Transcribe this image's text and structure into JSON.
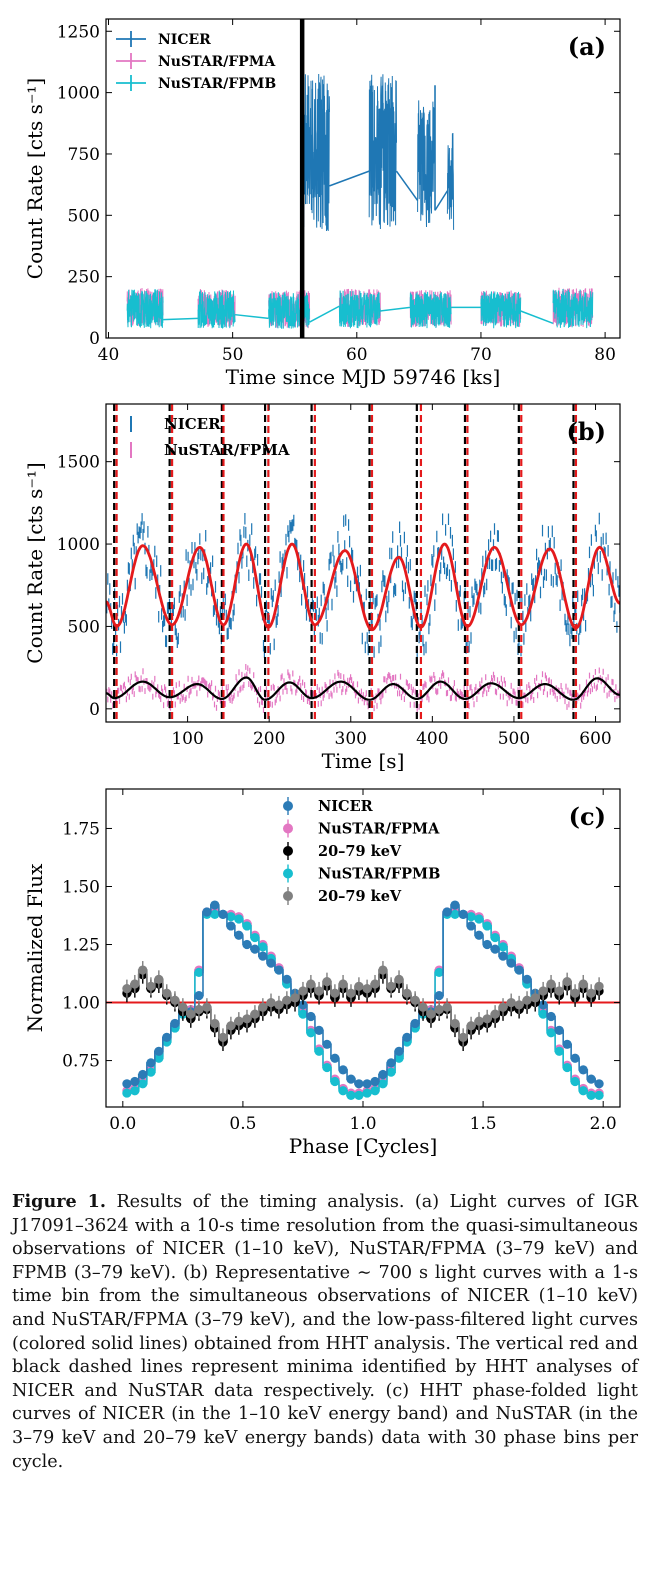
{
  "figure": {
    "caption_label": "Figure 1.",
    "caption_text": "Results of the timing analysis. (a) Light curves of IGR J17091–3624 with a 10-s time resolution from the quasi-simultaneous observations of NICER (1–10 keV), NuSTAR/FPMA (3–79 keV) and FPMB (3–79 keV). (b) Representative ∼ 700 s light curves with a 1-s time bin from the simultaneous observations of NICER (1–10 keV) and NuSTAR/FPMA (3–79 keV), and the low-pass-filtered light curves (colored solid lines) obtained from HHT analysis. The vertical red and black dashed lines represent minima identified by HHT analyses of NICER and NuSTAR data respectively. (c) HHT phase-folded light curves of NICER (in the 1–10 keV energy band) and NuSTAR (in the 3–79 keV and 20–79 keV energy bands) data with 30 phase bins per cycle."
  },
  "chart_data": [
    {
      "panel": "(a)",
      "type": "line",
      "xlabel": "Time since MJD 59746 [ks]",
      "ylabel": "Count Rate [cts s⁻¹]",
      "xlim": [
        39.8,
        81.2
      ],
      "ylim": [
        0,
        1300
      ],
      "xticks": [
        40,
        50,
        60,
        70,
        80
      ],
      "yticks": [
        0,
        250,
        500,
        750,
        1000,
        1250
      ],
      "legend_position": "top-left",
      "vline_x": 55.6,
      "series": [
        {
          "name": "NICER",
          "color": "#1f77b4",
          "segments": [
            {
              "x": [
                55.5,
                57.8
              ],
              "low": 430,
              "high": 1080
            },
            {
              "x": [
                61.0,
                63.2
              ],
              "low": 440,
              "high": 1080
            },
            {
              "x": [
                64.9,
                66.3
              ],
              "low": 450,
              "high": 970
            },
            {
              "x": [
                67.3,
                67.8
              ],
              "low": 440,
              "high": 850
            }
          ],
          "connectors": [
            [
              57.8,
              620,
              61.0,
              680
            ],
            [
              63.2,
              680,
              64.9,
              560
            ],
            [
              66.3,
              520,
              67.3,
              600
            ]
          ],
          "spike": [
            66.3,
            520,
            66.3,
            1030
          ]
        },
        {
          "name": "NuSTAR/FPMA",
          "color": "#e377c2",
          "segments": [
            {
              "x": [
                41.5,
                44.4
              ],
              "low": 45,
              "high": 205
            },
            {
              "x": [
                47.2,
                50.2
              ],
              "low": 45,
              "high": 200
            },
            {
              "x": [
                52.9,
                56.2
              ],
              "low": 40,
              "high": 195
            },
            {
              "x": [
                58.6,
                61.9
              ],
              "low": 45,
              "high": 200
            },
            {
              "x": [
                64.3,
                67.6
              ],
              "low": 45,
              "high": 195
            },
            {
              "x": [
                70.0,
                73.2
              ],
              "low": 45,
              "high": 195
            },
            {
              "x": [
                75.8,
                79.0
              ],
              "low": 45,
              "high": 205
            }
          ]
        },
        {
          "name": "NuSTAR/FPMB",
          "color": "#17becf",
          "segments": [
            {
              "x": [
                41.5,
                44.4
              ],
              "low": 40,
              "high": 200
            },
            {
              "x": [
                47.2,
                50.2
              ],
              "low": 40,
              "high": 195
            },
            {
              "x": [
                52.9,
                56.2
              ],
              "low": 35,
              "high": 190
            },
            {
              "x": [
                58.6,
                61.9
              ],
              "low": 40,
              "high": 195
            },
            {
              "x": [
                64.3,
                67.6
              ],
              "low": 40,
              "high": 190
            },
            {
              "x": [
                70.0,
                73.2
              ],
              "low": 40,
              "high": 190
            },
            {
              "x": [
                75.8,
                79.0
              ],
              "low": 40,
              "high": 200
            }
          ],
          "connectors": [
            [
              44.4,
              75,
              47.2,
              80
            ],
            [
              50.2,
              95,
              52.9,
              80
            ],
            [
              56.2,
              65,
              58.6,
              130
            ],
            [
              61.9,
              110,
              64.3,
              125
            ],
            [
              67.6,
              125,
              70.0,
              125
            ],
            [
              73.2,
              110,
              75.8,
              60
            ]
          ]
        }
      ]
    },
    {
      "panel": "(b)",
      "type": "line",
      "xlabel": "Time [s]",
      "ylabel": "Count Rate [cts s⁻¹]",
      "xlim": [
        0,
        630
      ],
      "ylim": [
        -80,
        1850
      ],
      "xticks": [
        100,
        200,
        300,
        400,
        500,
        600
      ],
      "yticks": [
        0,
        500,
        1000,
        1500
      ],
      "legend_position": "top-left",
      "minima_nicer_red": [
        13,
        81,
        144,
        199,
        256,
        326,
        386,
        443,
        509,
        576
      ],
      "minima_nustar_black": [
        10,
        78,
        142,
        195,
        252,
        323,
        381,
        440,
        506,
        573
      ],
      "nicer_filtered": {
        "color": "#e41a1c",
        "x": [
          0,
          13,
          45,
          81,
          115,
          144,
          172,
          199,
          228,
          256,
          293,
          326,
          359,
          386,
          415,
          443,
          476,
          509,
          544,
          576,
          605,
          630
        ],
        "y": [
          650,
          500,
          990,
          510,
          980,
          510,
          1000,
          495,
          1000,
          510,
          960,
          480,
          920,
          495,
          1000,
          500,
          980,
          510,
          970,
          490,
          980,
          640
        ]
      },
      "nustar_filtered": {
        "color": "#000000",
        "x": [
          0,
          10,
          45,
          78,
          112,
          142,
          172,
          195,
          225,
          252,
          288,
          323,
          352,
          381,
          410,
          440,
          472,
          506,
          538,
          573,
          602,
          630
        ],
        "y": [
          95,
          65,
          165,
          70,
          150,
          60,
          190,
          55,
          160,
          65,
          165,
          55,
          150,
          60,
          165,
          60,
          155,
          65,
          150,
          55,
          185,
          85
        ]
      },
      "series": [
        {
          "name": "NICER",
          "color": "#1f77b4"
        },
        {
          "name": "NuSTAR/FPMA",
          "color": "#e377c2"
        }
      ]
    },
    {
      "panel": "(c)",
      "type": "scatter",
      "xlabel": "Phase [Cycles]",
      "ylabel": "Normalized Flux",
      "xlim": [
        -0.07,
        2.07
      ],
      "ylim": [
        0.55,
        1.92
      ],
      "xticks": [
        0.0,
        0.5,
        1.0,
        1.5,
        2.0
      ],
      "xtick_labels": [
        "0.0",
        "0.5",
        "1.0",
        "1.5",
        "2.0"
      ],
      "yticks": [
        0.75,
        1.0,
        1.25,
        1.5,
        1.75
      ],
      "ytick_labels": [
        "0.75",
        "1.00",
        "1.25",
        "1.50",
        "1.75"
      ],
      "legend_position": "top-center",
      "hline_y": 1.0,
      "phase": [
        0.017,
        0.05,
        0.083,
        0.117,
        0.15,
        0.183,
        0.217,
        0.25,
        0.283,
        0.317,
        0.35,
        0.383,
        0.417,
        0.45,
        0.483,
        0.517,
        0.55,
        0.583,
        0.617,
        0.65,
        0.683,
        0.717,
        0.75,
        0.783,
        0.817,
        0.85,
        0.883,
        0.917,
        0.95,
        0.983
      ],
      "series": [
        {
          "name": "NICER",
          "color": "#2c7bb6",
          "y": [
            0.65,
            0.66,
            0.69,
            0.74,
            0.79,
            0.85,
            0.91,
            0.97,
            0.96,
            1.03,
            1.39,
            1.42,
            1.38,
            1.33,
            1.29,
            1.25,
            1.23,
            1.2,
            1.17,
            1.14,
            1.1,
            1.04,
            0.99,
            0.94,
            0.88,
            0.82,
            0.76,
            0.71,
            0.67,
            0.65
          ]
        },
        {
          "name": "NuSTAR/FPMA",
          "color": "#e377c2",
          "y": [
            0.62,
            0.63,
            0.66,
            0.71,
            0.77,
            0.84,
            0.9,
            0.96,
            0.97,
            1.14,
            1.39,
            1.39,
            1.38,
            1.38,
            1.37,
            1.34,
            1.29,
            1.25,
            1.2,
            1.15,
            1.09,
            1.03,
            0.96,
            0.88,
            0.8,
            0.73,
            0.67,
            0.63,
            0.61,
            0.61
          ]
        },
        {
          "name": "20–79 keV",
          "color": "#000000",
          "y": [
            1.04,
            1.06,
            1.12,
            1.06,
            1.08,
            1.03,
            1.0,
            0.96,
            0.93,
            0.96,
            0.97,
            0.89,
            0.83,
            0.88,
            0.9,
            0.91,
            0.93,
            0.96,
            0.98,
            0.97,
            0.99,
            1.0,
            1.03,
            1.06,
            1.03,
            1.07,
            1.02,
            1.06,
            1.02,
            1.05
          ]
        },
        {
          "name": "NuSTAR/FPMB",
          "color": "#17becf",
          "y": [
            0.61,
            0.62,
            0.65,
            0.7,
            0.76,
            0.83,
            0.89,
            0.95,
            0.96,
            1.13,
            1.38,
            1.38,
            1.38,
            1.37,
            1.36,
            1.33,
            1.28,
            1.24,
            1.19,
            1.14,
            1.08,
            1.02,
            0.95,
            0.87,
            0.79,
            0.72,
            0.66,
            0.62,
            0.6,
            0.6
          ]
        },
        {
          "name": "20–79 keV",
          "color": "#808080",
          "y": [
            1.06,
            1.08,
            1.14,
            1.07,
            1.1,
            1.04,
            1.01,
            0.98,
            0.95,
            0.97,
            0.98,
            0.91,
            0.85,
            0.9,
            0.92,
            0.93,
            0.95,
            0.98,
            1.0,
            0.99,
            1.01,
            1.02,
            1.05,
            1.08,
            1.05,
            1.09,
            1.04,
            1.08,
            1.04,
            1.07
          ]
        }
      ]
    }
  ]
}
